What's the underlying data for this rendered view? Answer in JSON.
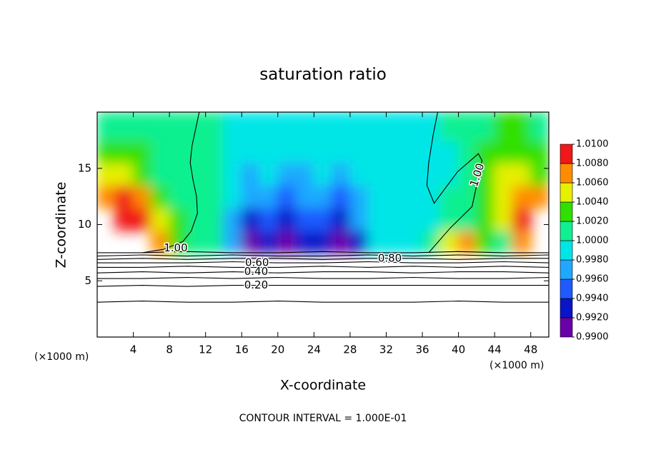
{
  "chart_data": {
    "type": "contour",
    "title": "saturation ratio",
    "x_label": "X-coordinate",
    "y_label": "Z-coordinate",
    "x_unit_left": "(×1000 m)",
    "x_unit_right": "(×1000 m)",
    "footer": "CONTOUR INTERVAL = 1.000E-01",
    "xlim": [
      0,
      50
    ],
    "ylim": [
      0,
      20
    ],
    "xticks": [
      4,
      8,
      12,
      16,
      20,
      24,
      28,
      32,
      36,
      40,
      44,
      48
    ],
    "yticks": [
      5,
      10,
      15
    ],
    "colorbar": {
      "levels": [
        {
          "value": 0.99,
          "label": "0.9900"
        },
        {
          "value": 0.992,
          "label": "0.9920"
        },
        {
          "value": 0.994,
          "label": "0.9940"
        },
        {
          "value": 0.996,
          "label": "0.9960"
        },
        {
          "value": 0.998,
          "label": "0.9980"
        },
        {
          "value": 1.0,
          "label": "1.0000"
        },
        {
          "value": 1.002,
          "label": "1.0020"
        },
        {
          "value": 1.004,
          "label": "1.0040"
        },
        {
          "value": 1.006,
          "label": "1.0060"
        },
        {
          "value": 1.008,
          "label": "1.0080"
        },
        {
          "value": 1.01,
          "label": "1.0100"
        }
      ],
      "colors": [
        "#6a00a8",
        "#0a14c8",
        "#1e5aff",
        "#1ea8ff",
        "#00e6e6",
        "#10f090",
        "#30e000",
        "#e6f000",
        "#ff8c00",
        "#f01818",
        "#f08c8c"
      ]
    },
    "field": {
      "x": [
        1,
        3,
        5,
        7,
        9,
        11,
        13,
        15,
        17,
        19,
        21,
        23,
        25,
        27,
        29,
        31,
        33,
        35,
        37,
        39,
        41,
        43,
        45,
        47,
        49
      ],
      "y": [
        8.5,
        10.5,
        12.5,
        14.5,
        16.5,
        18.5
      ],
      "values": [
        [
          null,
          null,
          null,
          1.007,
          1.003,
          1.0005,
          1.0,
          0.996,
          0.991,
          0.992,
          0.991,
          0.992,
          0.992,
          0.991,
          0.993,
          0.999,
          0.9995,
          0.9995,
          1.0,
          1.004,
          1.007,
          1.002,
          1.001,
          1.006,
          null
        ],
        [
          null,
          1.008,
          1.008,
          1.004,
          1.002,
          1.0005,
          1.0,
          0.997,
          0.993,
          0.995,
          0.993,
          0.994,
          0.995,
          0.993,
          0.996,
          0.999,
          0.9995,
          0.9995,
          0.9995,
          1.0005,
          1.001,
          1.002,
          1.004,
          1.008,
          null
        ],
        [
          1.007,
          1.008,
          1.006,
          1.002,
          1.001,
          1.0005,
          1.0,
          0.998,
          0.996,
          0.997,
          0.995,
          0.996,
          0.997,
          0.995,
          0.997,
          0.9985,
          0.9995,
          0.9995,
          0.9995,
          1.0005,
          1.0005,
          1.002,
          1.004,
          1.007,
          1.007
        ],
        [
          1.004,
          1.005,
          1.003,
          1.001,
          1.0005,
          1.0005,
          1.0,
          0.999,
          0.997,
          0.998,
          0.997,
          0.997,
          0.998,
          0.997,
          0.998,
          0.9985,
          0.9995,
          0.9995,
          0.9995,
          0.9995,
          1.0005,
          1.003,
          1.004,
          1.004,
          1.002
        ],
        [
          1.002,
          1.003,
          1.002,
          1.001,
          1.0005,
          1.0005,
          1.0,
          0.9995,
          0.998,
          0.9985,
          0.998,
          0.998,
          0.9985,
          0.998,
          0.9985,
          0.999,
          0.9995,
          0.9995,
          0.9995,
          0.9995,
          1.0005,
          1.002,
          1.003,
          1.003,
          1.002
        ],
        [
          1.001,
          1.001,
          1.001,
          1.0005,
          1.0005,
          1.0005,
          1.0,
          0.9995,
          0.9985,
          0.999,
          0.9985,
          0.999,
          0.999,
          0.999,
          0.999,
          0.9995,
          0.9995,
          0.9995,
          0.9995,
          1.0005,
          1.001,
          1.001,
          1.002,
          1.002,
          1.001
        ]
      ]
    },
    "contours": [
      {
        "x": [
          0,
          5,
          10,
          15,
          20,
          25,
          30,
          35,
          40,
          45,
          50
        ],
        "y": [
          3.1,
          3.2,
          3.1,
          3.1,
          3.2,
          3.1,
          3.1,
          3.1,
          3.2,
          3.1,
          3.1
        ]
      },
      {
        "x": [
          0,
          5,
          10,
          15,
          20,
          25,
          30,
          35,
          40,
          45,
          50
        ],
        "y": [
          4.5,
          4.6,
          4.5,
          4.6,
          4.6,
          4.6,
          4.6,
          4.6,
          4.6,
          4.6,
          4.6
        ]
      },
      {
        "x": [
          0,
          5,
          10,
          15,
          20,
          25,
          30,
          35,
          40,
          45,
          50
        ],
        "y": [
          5.2,
          5.2,
          5.3,
          5.2,
          5.3,
          5.2,
          5.2,
          5.3,
          5.2,
          5.2,
          5.3
        ]
      },
      {
        "x": [
          0,
          5,
          10,
          15,
          20,
          25,
          30,
          35,
          40,
          45,
          50
        ],
        "y": [
          5.7,
          5.8,
          5.7,
          5.8,
          5.7,
          5.8,
          5.8,
          5.7,
          5.8,
          5.8,
          5.7
        ]
      },
      {
        "x": [
          0,
          5,
          10,
          15,
          20,
          25,
          30,
          35,
          40,
          45,
          50
        ],
        "y": [
          6.2,
          6.2,
          6.3,
          6.2,
          6.2,
          6.3,
          6.2,
          6.3,
          6.2,
          6.3,
          6.2
        ]
      },
      {
        "x": [
          0,
          5,
          10,
          15,
          20,
          25,
          30,
          35,
          40,
          45,
          50
        ],
        "y": [
          6.6,
          6.6,
          6.6,
          6.7,
          6.6,
          6.6,
          6.7,
          6.6,
          6.6,
          6.7,
          6.6
        ]
      },
      {
        "x": [
          0,
          5,
          10,
          15,
          20,
          25,
          30,
          35,
          40,
          45,
          50
        ],
        "y": [
          6.9,
          7.0,
          6.9,
          7.0,
          7.0,
          6.9,
          7.0,
          7.0,
          6.9,
          7.0,
          7.0
        ]
      },
      {
        "x": [
          0,
          5,
          10,
          15,
          20,
          25,
          30,
          35,
          40,
          45,
          50
        ],
        "y": [
          7.2,
          7.3,
          7.2,
          7.3,
          7.2,
          7.2,
          7.3,
          7.2,
          7.3,
          7.2,
          7.3
        ]
      },
      {
        "x": [
          0,
          5,
          10,
          15,
          20,
          25,
          30,
          35,
          40,
          45,
          50
        ],
        "y": [
          7.5,
          7.5,
          7.6,
          7.5,
          7.5,
          7.6,
          7.5,
          7.5,
          7.6,
          7.5,
          7.5
        ]
      },
      {
        "x": [
          11.3,
          10.9,
          10.5,
          10.3,
          10.6,
          11.0,
          11.1,
          10.4,
          9.5,
          7.4,
          5.0
        ],
        "y": [
          20,
          18.5,
          17,
          15.5,
          14,
          12.5,
          11,
          9.4,
          8.5,
          7.8,
          7.5
        ]
      },
      {
        "x": [
          37.7,
          37.2,
          36.7,
          36.5,
          37.3,
          39.9,
          42.2,
          42.6,
          41.5,
          39.1,
          36.7
        ],
        "y": [
          20,
          18,
          15.5,
          13.5,
          11.9,
          14.7,
          16.3,
          15.7,
          11.6,
          9.7,
          7.5
        ]
      }
    ],
    "contour_labels": [
      {
        "text": "0.20",
        "x": 17.6,
        "y": 4.6
      },
      {
        "text": "0.40",
        "x": 17.6,
        "y": 5.8
      },
      {
        "text": "0.60",
        "x": 17.7,
        "y": 6.6
      },
      {
        "text": "0.80",
        "x": 32.4,
        "y": 7.0
      },
      {
        "text": "1.00",
        "x": 8.7,
        "y": 7.9
      },
      {
        "text": "1.00",
        "x": 42.1,
        "y": 14.4
      }
    ]
  }
}
